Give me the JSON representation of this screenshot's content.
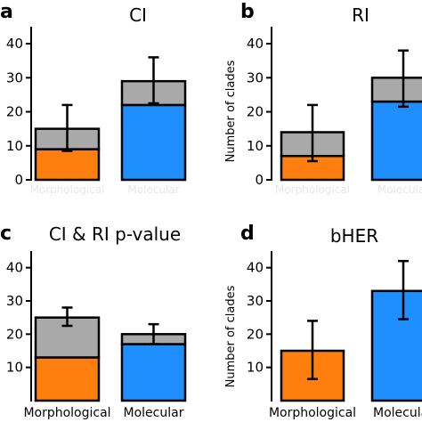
{
  "chart_data": [
    {
      "type": "bar",
      "stacked": true,
      "panel_label": "a",
      "title": "CI",
      "ylabel": "",
      "ylim": [
        0,
        45
      ],
      "yticks": [
        0,
        10,
        20,
        30,
        40
      ],
      "categories": [
        "Morphological",
        "Molecular"
      ],
      "category_labels_visible": false,
      "series": [
        {
          "values": [
            9,
            22
          ],
          "colors": [
            "#ff7f0e",
            "#1f8fff"
          ]
        },
        {
          "values": [
            6,
            7
          ],
          "colors": [
            "#a9a9a9",
            "#a9a9a9"
          ]
        }
      ],
      "error_bars": [
        {
          "center": 15,
          "low": 8.5,
          "high": 22
        },
        {
          "center": 29,
          "low": 22.5,
          "high": 36
        }
      ]
    },
    {
      "type": "bar",
      "stacked": true,
      "panel_label": "b",
      "title": "RI",
      "ylabel": "Number of clades",
      "ylim": [
        0,
        45
      ],
      "yticks": [
        0,
        10,
        20,
        30,
        40
      ],
      "categories": [
        "Morphological",
        "Molecular"
      ],
      "category_labels_visible": false,
      "series": [
        {
          "values": [
            7,
            23
          ],
          "colors": [
            "#ff7f0e",
            "#1f8fff"
          ]
        },
        {
          "values": [
            7,
            7
          ],
          "colors": [
            "#a9a9a9",
            "#a9a9a9"
          ]
        }
      ],
      "error_bars": [
        {
          "center": 14,
          "low": 5.5,
          "high": 22
        },
        {
          "center": 30,
          "low": 21.5,
          "high": 38
        }
      ]
    },
    {
      "type": "bar",
      "stacked": true,
      "panel_label": "c",
      "title": "CI & RI p-value",
      "ylabel": "",
      "ylim": [
        0,
        45
      ],
      "yticks": [
        10,
        20,
        30,
        40
      ],
      "categories": [
        "Morphological",
        "Molecular"
      ],
      "category_labels_visible": true,
      "series": [
        {
          "values": [
            13,
            17
          ],
          "colors": [
            "#ff7f0e",
            "#1f8fff"
          ]
        },
        {
          "values": [
            12,
            3
          ],
          "colors": [
            "#a9a9a9",
            "#a9a9a9"
          ]
        }
      ],
      "error_bars": [
        {
          "center": 25,
          "low": 22.5,
          "high": 28
        },
        {
          "center": 20,
          "low": 17,
          "high": 23
        }
      ]
    },
    {
      "type": "bar",
      "stacked": false,
      "panel_label": "d",
      "title": "bHER",
      "ylabel": "Number of clades",
      "ylim": [
        0,
        45
      ],
      "yticks": [
        10,
        20,
        30,
        40
      ],
      "categories": [
        "Morphological",
        "Molecular"
      ],
      "category_labels_visible": true,
      "series": [
        {
          "values": [
            15,
            33
          ],
          "colors": [
            "#ff7f0e",
            "#1f8fff"
          ]
        }
      ],
      "error_bars": [
        {
          "center": 15,
          "low": 6.5,
          "high": 24
        },
        {
          "center": 33,
          "low": 24.5,
          "high": 42
        }
      ]
    }
  ]
}
